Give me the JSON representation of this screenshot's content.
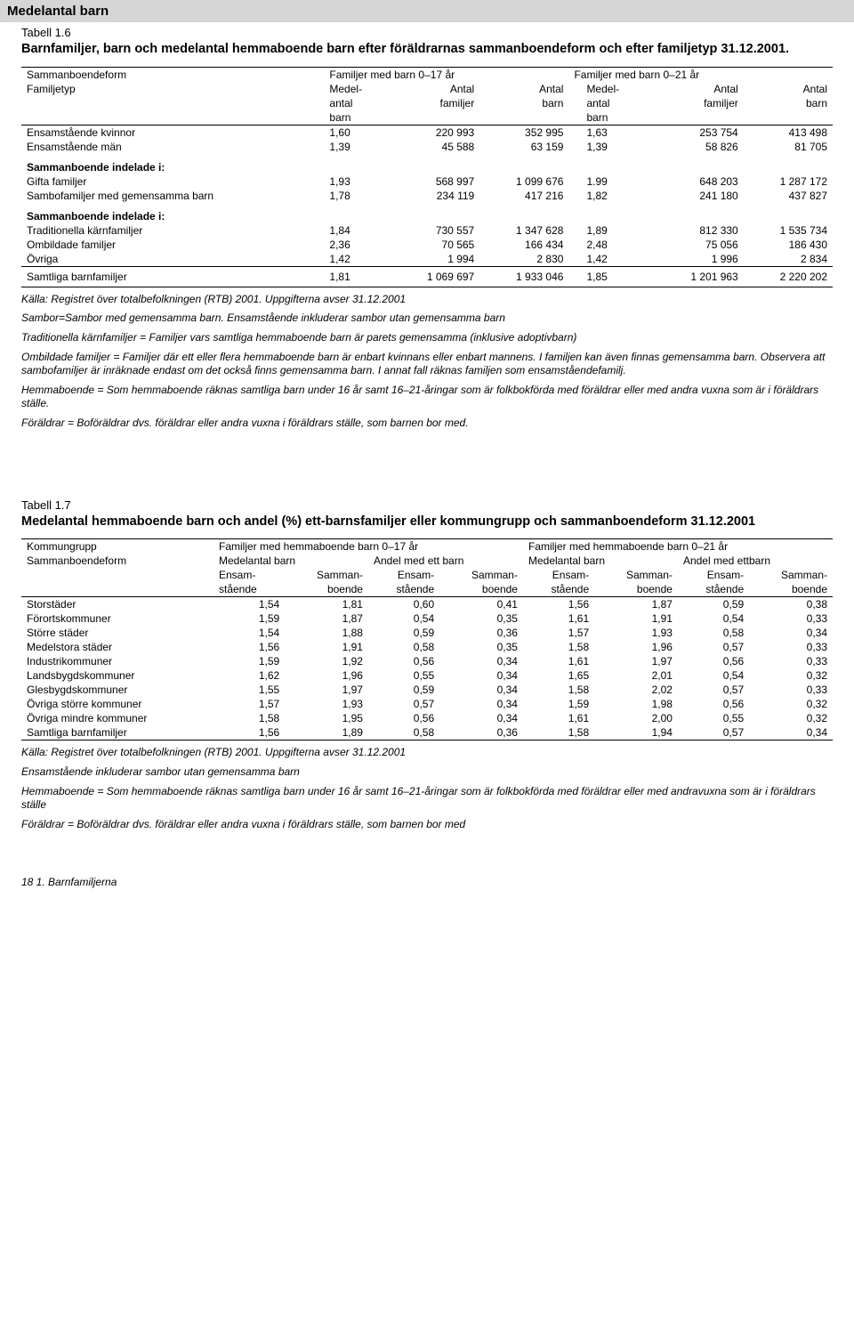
{
  "page": {
    "section_header": "Medelantal barn",
    "footer": "18   1. Barnfamiljerna"
  },
  "table1": {
    "label": "Tabell 1.6",
    "title": "Barnfamiljer, barn och medelantal hemmaboende barn efter föräldrarnas sammanboendeform och efter familjetyp 31.12.2001.",
    "col_headers": {
      "c0a": "Sammanboendeform",
      "c0b": "Familjetyp",
      "group17": "Familjer med barn 0–17 år",
      "group21": "Familjer med barn 0–21 år",
      "medel1": "Medel-",
      "medel2": "antal",
      "medel3": "barn",
      "antfam1": "Antal",
      "antfam2": "familjer",
      "antbarn1": "Antal",
      "antbarn2": "barn"
    },
    "rows": [
      {
        "label": "Ensamstående kvinnor",
        "v": [
          "1,60",
          "220 993",
          "352 995",
          "1,63",
          "253 754",
          "413 498"
        ]
      },
      {
        "label": "Ensamstående män",
        "v": [
          "1,39",
          "45 588",
          "63 159",
          "1,39",
          "58 826",
          "81 705"
        ]
      }
    ],
    "section_a": "Sammanboende indelade i:",
    "rows_a": [
      {
        "label": "Gifta familjer",
        "v": [
          "1,93",
          "568 997",
          "1 099 676",
          "1.99",
          "648 203",
          "1 287 172"
        ]
      },
      {
        "label": "Sambofamiljer med gemensamma barn",
        "v": [
          "1,78",
          "234 119",
          "417 216",
          "1,82",
          "241 180",
          "437 827"
        ]
      }
    ],
    "section_b": "Sammanboende indelade i:",
    "rows_b": [
      {
        "label": "Traditionella kärnfamiljer",
        "v": [
          "1,84",
          "730 557",
          "1 347 628",
          "1,89",
          "812 330",
          "1 535 734"
        ]
      },
      {
        "label": "Ombildade familjer",
        "v": [
          "2,36",
          "70 565",
          "166 434",
          "2,48",
          "75 056",
          "186 430"
        ]
      },
      {
        "label": "Övriga",
        "v": [
          "1,42",
          "1 994",
          "2 830",
          "1,42",
          "1 996",
          "2 834"
        ]
      }
    ],
    "total": {
      "label": "Samtliga barnfamiljer",
      "v": [
        "1,81",
        "1 069 697",
        "1 933 046",
        "1,85",
        "1 201 963",
        "2 220 202"
      ]
    },
    "notes": [
      "Källa:  Registret över totalbefolkningen (RTB) 2001. Uppgifterna avser 31.12.2001",
      "Sambor=Sambor med gemensamma barn. Ensamstående inkluderar sambor utan gemensamma barn",
      "Traditionella kärnfamiljer = Familjer vars samtliga hemmaboende barn är parets gemensamma (inklusive adoptivbarn)",
      "Ombildade familjer = Familjer där ett eller flera hemmaboende barn är enbart kvinnans eller enbart mannens. I familjen kan även finnas gemensamma barn. Observera att sambofamiljer är inräknade endast om det också finns gemensamma barn. I annat fall räknas familjen som ensamståendefamilj.",
      "Hemmaboende = Som hemmaboende räknas samtliga barn under 16 år samt 16–21-åringar som är folkbokförda med föräldrar eller med andra vuxna som är i föräldrars ställe.",
      "Föräldrar = Boföräldrar dvs. föräldrar eller andra  vuxna i föräldrars ställe, som barnen bor med."
    ]
  },
  "table2": {
    "label": "Tabell 1.7",
    "title": "Medelantal hemmaboende barn och andel (%) ett-barnsfamiljer eller kommungrupp och sammanboendeform 31.12.2001",
    "col_headers": {
      "c0a": "Kommungrupp",
      "c0b": "Sammanboendeform",
      "group17": "Familjer med hemmaboende barn 0–17 år",
      "group21": "Familjer med hemmaboende barn 0–21 år",
      "medel": "Medelantal barn",
      "andel": "Andel med ett barn",
      "andel2": "Andel med ettbarn",
      "ens1": "Ensam-",
      "ens2": "stående",
      "sam1": "Samman-",
      "sam2": "boende"
    },
    "rows": [
      {
        "label": "Storstäder",
        "v": [
          "1,54",
          "1,81",
          "0,60",
          "0,41",
          "1,56",
          "1,87",
          "0,59",
          "0,38"
        ]
      },
      {
        "label": "Förortskommuner",
        "v": [
          "1,59",
          "1,87",
          "0,54",
          "0,35",
          "1,61",
          "1,91",
          "0,54",
          "0,33"
        ]
      },
      {
        "label": "Större städer",
        "v": [
          "1,54",
          "1,88",
          "0,59",
          "0,36",
          "1,57",
          "1,93",
          "0,58",
          "0,34"
        ]
      },
      {
        "label": "Medelstora städer",
        "v": [
          "1,56",
          "1,91",
          "0,58",
          "0,35",
          "1,58",
          "1,96",
          "0,57",
          "0,33"
        ]
      },
      {
        "label": "Industrikommuner",
        "v": [
          "1,59",
          "1,92",
          "0,56",
          "0,34",
          "1,61",
          "1,97",
          "0,56",
          "0,33"
        ]
      },
      {
        "label": "Landsbygdskommuner",
        "v": [
          "1,62",
          "1,96",
          "0,55",
          "0,34",
          "1,65",
          "2,01",
          "0,54",
          "0,32"
        ]
      },
      {
        "label": "Glesbygdskommuner",
        "v": [
          "1,55",
          "1,97",
          "0,59",
          "0,34",
          "1,58",
          "2,02",
          "0,57",
          "0,33"
        ]
      },
      {
        "label": "Övriga större kommuner",
        "v": [
          "1,57",
          "1,93",
          "0,57",
          "0,34",
          "1,59",
          "1,98",
          "0,56",
          "0,32"
        ]
      },
      {
        "label": "Övriga mindre kommuner",
        "v": [
          "1,58",
          "1,95",
          "0,56",
          "0,34",
          "1,61",
          "2,00",
          "0,55",
          "0,32"
        ]
      },
      {
        "label": "Samtliga barnfamiljer",
        "v": [
          "1,56",
          "1,89",
          "0,58",
          "0,36",
          "1,58",
          "1,94",
          "0,57",
          "0,34"
        ]
      }
    ],
    "notes": [
      "Källa:  Registret över totalbefolkningen (RTB) 2001. Uppgifterna avser 31.12.2001",
      "Ensamstående inkluderar sambor utan gemensamma barn",
      "Hemmaboende = Som hemmaboende räknas samtliga barn under 16 år samt 16–21-åringar som är folkbokförda med föräldrar eller med andravuxna som är i föräldrars ställe",
      "Föräldrar = Boföräldrar dvs. föräldrar eller andra vuxna i föräldrars ställe, som barnen bor med"
    ]
  }
}
